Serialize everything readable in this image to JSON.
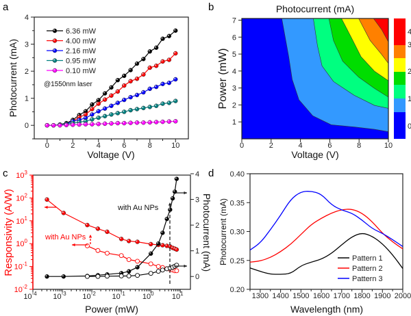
{
  "chart_data": [
    {
      "panel": "a",
      "type": "line",
      "xlabel": "Voltage (V)",
      "ylabel": "Photocurrent (mA)",
      "xlim": [
        -1,
        11
      ],
      "ylim": [
        -0.5,
        4
      ],
      "xticks": [
        0,
        2,
        4,
        6,
        8,
        10
      ],
      "yticks": [
        0,
        1,
        2,
        3,
        4
      ],
      "annotation": "@1550nm laser",
      "legend_position": "top-left",
      "x": [
        0,
        0.5,
        1,
        1.5,
        2,
        2.5,
        3,
        3.5,
        4,
        4.5,
        5,
        5.5,
        6,
        6.5,
        7,
        7.5,
        8,
        8.5,
        9,
        9.5,
        10
      ],
      "series": [
        {
          "name": "6.36 mW",
          "color": "#000000",
          "values": [
            0,
            0,
            0.03,
            0.08,
            0.2,
            0.38,
            0.52,
            0.77,
            0.93,
            1.18,
            1.4,
            1.67,
            1.83,
            2.04,
            2.28,
            2.45,
            2.73,
            2.87,
            3.2,
            3.3,
            3.5
          ]
        },
        {
          "name": "4.00 mW",
          "color": "#ff0000",
          "values": [
            0,
            0,
            0.02,
            0.05,
            0.15,
            0.3,
            0.4,
            0.6,
            0.8,
            0.95,
            1.1,
            1.25,
            1.47,
            1.63,
            1.72,
            1.88,
            2.13,
            2.2,
            2.36,
            2.42,
            2.66
          ]
        },
        {
          "name": "2.16 mW",
          "color": "#0000ff",
          "values": [
            0,
            0,
            0.02,
            0.05,
            0.15,
            0.2,
            0.27,
            0.4,
            0.52,
            0.62,
            0.72,
            0.83,
            0.94,
            1.04,
            1.12,
            1.22,
            1.35,
            1.42,
            1.53,
            1.57,
            1.7
          ]
        },
        {
          "name": "0.95 mW",
          "color": "#008080",
          "values": [
            0,
            0,
            0.02,
            0.04,
            0.08,
            0.12,
            0.15,
            0.22,
            0.28,
            0.34,
            0.4,
            0.45,
            0.5,
            0.56,
            0.6,
            0.64,
            0.68,
            0.72,
            0.8,
            0.83,
            0.9
          ]
        },
        {
          "name": "0.10 mW",
          "color": "#ff00ff",
          "values": [
            0,
            0,
            0,
            0.01,
            0.02,
            0.03,
            0.04,
            0.04,
            0.05,
            0.06,
            0.07,
            0.08,
            0.08,
            0.09,
            0.1,
            0.1,
            0.11,
            0.12,
            0.13,
            0.14,
            0.15
          ]
        }
      ]
    },
    {
      "panel": "b",
      "type": "heatmap",
      "title": "Photocurrent (mA)",
      "xlabel": "Voltage (V)",
      "ylabel": "Power (mW)",
      "xlim": [
        0,
        10
      ],
      "ylim": [
        0,
        7.1
      ],
      "xticks": [
        0,
        2,
        4,
        6,
        8,
        10
      ],
      "yticks": [
        1,
        2,
        3,
        4,
        5,
        6,
        7
      ],
      "colorbar_labels": [
        0,
        1,
        2,
        3,
        4
      ],
      "band_colors": [
        "#0000ff",
        "#3399ff",
        "#00ff80",
        "#00dd00",
        "#ffff00",
        "#ff8000",
        "#ff0000"
      ],
      "contours": [
        {
          "level": 0.5,
          "points": [
            [
              2.73,
              7.1
            ],
            [
              3.2,
              4.85
            ],
            [
              3.44,
              3.5
            ],
            [
              3.9,
              2.3
            ],
            [
              4.84,
              1.36
            ],
            [
              6.1,
              0.83
            ],
            [
              7.66,
              0.7
            ],
            [
              9.06,
              0.56
            ],
            [
              10,
              0.42
            ]
          ]
        },
        {
          "level": 1.0,
          "points": [
            [
              4.88,
              7.1
            ],
            [
              5.16,
              5.5
            ],
            [
              5.47,
              4.3
            ],
            [
              6.25,
              3.38
            ],
            [
              7.66,
              2.57
            ],
            [
              9.06,
              1.97
            ],
            [
              10,
              1.8
            ]
          ]
        },
        {
          "level": 1.5,
          "points": [
            [
              5.94,
              7.1
            ],
            [
              6.25,
              5.8
            ],
            [
              6.88,
              4.58
            ],
            [
              7.97,
              3.64
            ],
            [
              9.06,
              2.97
            ],
            [
              10,
              2.46
            ]
          ]
        },
        {
          "level": 2.0,
          "points": [
            [
              6.8,
              7.1
            ],
            [
              7.5,
              5.93
            ],
            [
              8.13,
              4.85
            ],
            [
              9.06,
              3.98
            ],
            [
              10,
              3.43
            ]
          ]
        },
        {
          "level": 2.5,
          "points": [
            [
              7.97,
              7.1
            ],
            [
              8.75,
              5.8
            ],
            [
              9.53,
              4.99
            ],
            [
              10,
              4.45
            ]
          ]
        },
        {
          "level": 3.0,
          "points": [
            [
              8.98,
              7.1
            ],
            [
              9.53,
              6.46
            ],
            [
              10,
              5.72
            ]
          ]
        }
      ]
    },
    {
      "panel": "c",
      "type": "line",
      "xlabel": "Power (mW)",
      "ylabel_left": "Responsivity (A/W)",
      "ylabel_right": "Photocurrent (mA)",
      "xscale": "log",
      "xlim": [
        0.0001,
        22
      ],
      "xtick_exponents": [
        -4,
        -3,
        -2,
        -1,
        0,
        1
      ],
      "yscale_left": "log",
      "ylim_left": [
        0.01,
        1000
      ],
      "ytick_exponents_left": [
        -2,
        -1,
        0,
        1,
        2,
        3
      ],
      "ylim_right": [
        -0.5,
        4
      ],
      "yticks_right": [
        0,
        1,
        2,
        3,
        4
      ],
      "annotations": [
        "with Au NPs",
        "with Au NPs"
      ],
      "series": [
        {
          "axis": "left",
          "filled": true,
          "color": "#ff0000",
          "x": [
            0.0003,
            0.0011,
            0.007,
            0.016,
            0.033,
            0.1,
            0.18,
            0.35,
            1,
            1.8,
            2.5,
            3.5,
            4.5,
            5.5,
            6.5,
            7.5
          ],
          "values": [
            85,
            22,
            6.5,
            4.5,
            3.3,
            1.6,
            1.3,
            1.2,
            0.95,
            0.88,
            0.85,
            0.8,
            0.75,
            0.65,
            0.6,
            0.55
          ]
        },
        {
          "axis": "left",
          "filled": false,
          "color": "#ff0000",
          "x": [
            0.007,
            0.016,
            0.033,
            0.1,
            0.18,
            0.35,
            1,
            1.8,
            2.5,
            3.5,
            4.5,
            5.5,
            6.5,
            7.5
          ],
          "values": [
            0.8,
            0.5,
            0.38,
            0.3,
            0.2,
            0.17,
            0.13,
            0.1,
            0.09,
            0.08,
            0.075,
            0.07,
            0.065,
            0.065
          ]
        },
        {
          "axis": "right",
          "filled": true,
          "color": "#000000",
          "x": [
            0.0003,
            0.0011,
            0.007,
            0.016,
            0.033,
            0.1,
            0.18,
            0.35,
            1,
            1.8,
            2.5,
            3.5,
            4.5,
            5.5,
            6.5,
            7.5
          ],
          "values": [
            0,
            0,
            0.02,
            0.05,
            0.08,
            0.13,
            0.2,
            0.36,
            0.89,
            1.28,
            1.7,
            2.24,
            2.6,
            3.04,
            3.3,
            3.8
          ]
        },
        {
          "axis": "right",
          "filled": false,
          "color": "#000000",
          "x": [
            0.007,
            0.016,
            0.033,
            0.1,
            0.18,
            0.35,
            1,
            1.8,
            2.5,
            3.5,
            4.5,
            5.5,
            6.5,
            7.5
          ],
          "values": [
            0,
            0,
            0.01,
            0.02,
            0.02,
            0.04,
            0.12,
            0.2,
            0.25,
            0.3,
            0.33,
            0.36,
            0.4,
            0.44
          ]
        }
      ]
    },
    {
      "panel": "d",
      "type": "line",
      "xlabel": "Wavelength (nm)",
      "ylabel": "Photocurrent (mA)",
      "xlim": [
        1250,
        2000
      ],
      "ylim": [
        0.2,
        0.4
      ],
      "xticks": [
        1300,
        1400,
        1500,
        1600,
        1700,
        1800,
        1900,
        2000
      ],
      "yticks": [
        "0.20",
        "0.25",
        "0.30",
        "0.35",
        "0.40"
      ],
      "legend_position": "bottom-right",
      "x": [
        1250,
        1300,
        1350,
        1400,
        1450,
        1500,
        1550,
        1600,
        1650,
        1700,
        1750,
        1800,
        1850,
        1900,
        1950,
        2000
      ],
      "series": [
        {
          "name": "Pattern 1",
          "color": "#000000",
          "values": [
            0.237,
            0.231,
            0.226,
            0.226,
            0.227,
            0.241,
            0.247,
            0.252,
            0.262,
            0.277,
            0.291,
            0.298,
            0.292,
            0.279,
            0.26,
            0.236
          ]
        },
        {
          "name": "Pattern 2",
          "color": "#ff0000",
          "values": [
            0.247,
            0.249,
            0.255,
            0.265,
            0.278,
            0.295,
            0.312,
            0.323,
            0.332,
            0.338,
            0.339,
            0.332,
            0.317,
            0.297,
            0.282,
            0.27
          ]
        },
        {
          "name": "Pattern 3",
          "color": "#0000ff",
          "values": [
            0.268,
            0.28,
            0.303,
            0.328,
            0.356,
            0.369,
            0.37,
            0.365,
            0.346,
            0.337,
            0.332,
            0.32,
            0.305,
            0.297,
            0.286,
            0.274
          ]
        }
      ]
    }
  ]
}
